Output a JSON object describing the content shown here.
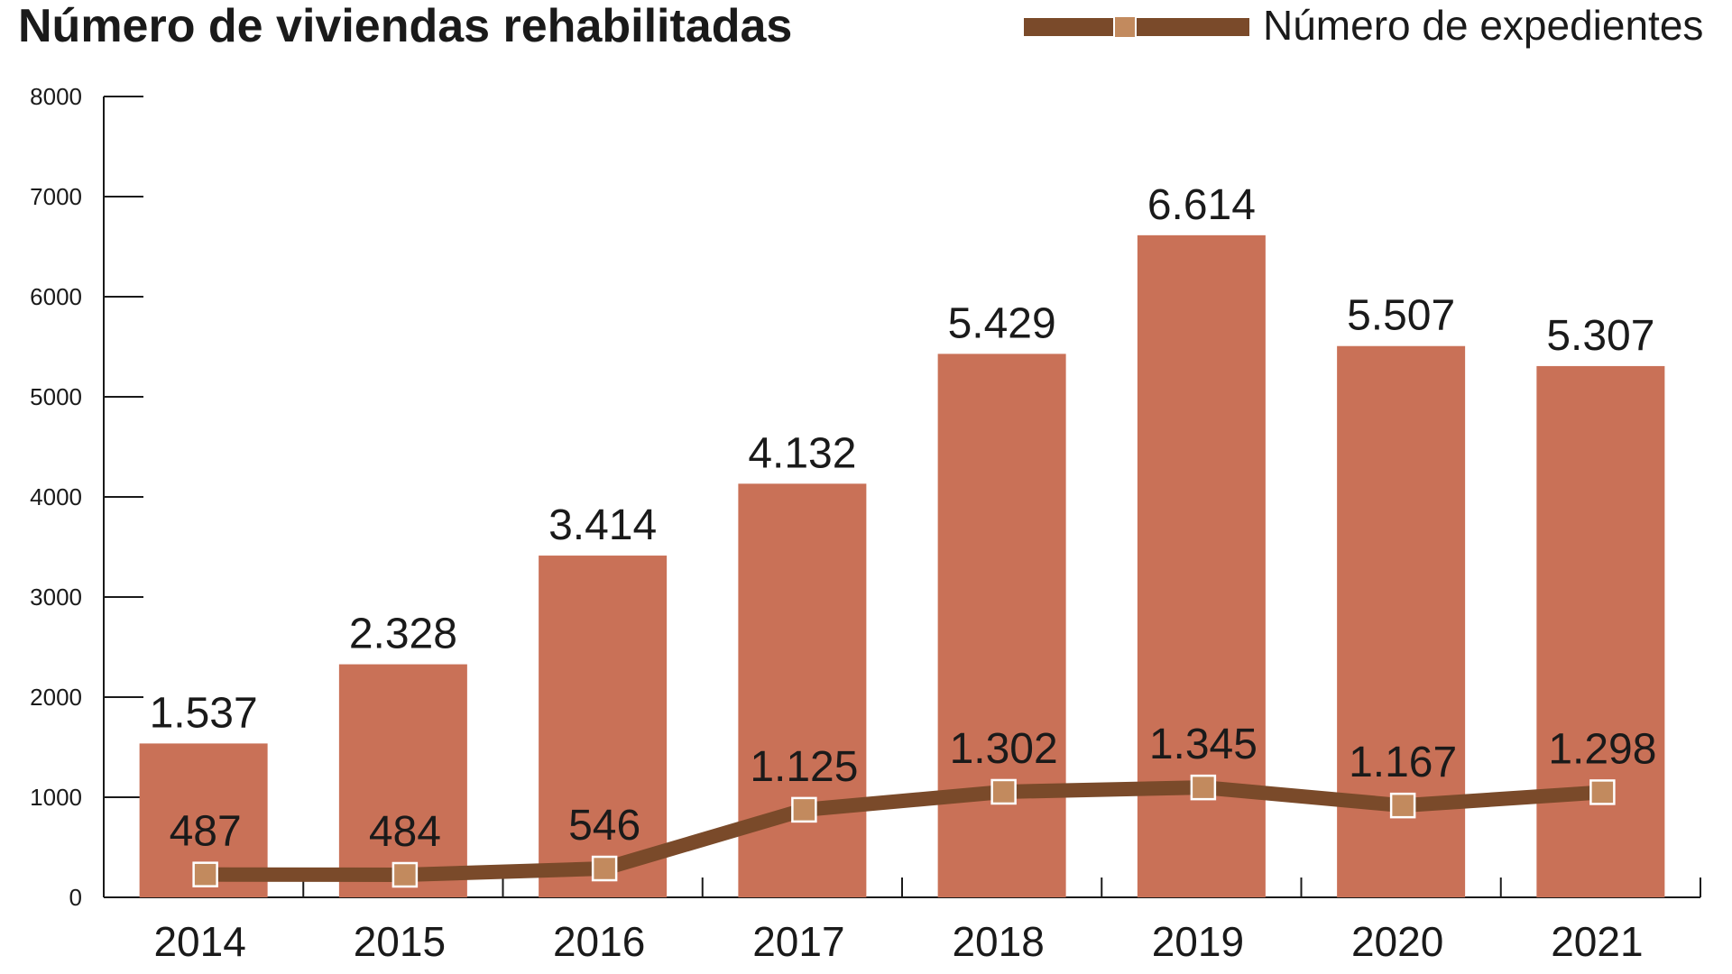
{
  "chart_data": {
    "type": "bar",
    "title": "Número de viviendas rehabilitadas",
    "categories": [
      "2014",
      "2015",
      "2016",
      "2017",
      "2018",
      "2019",
      "2020",
      "2021"
    ],
    "yticks": [
      "8000",
      "7000",
      "6000",
      "5000",
      "4000",
      "3000",
      "2000",
      "1000",
      "0"
    ],
    "ylim": [
      0,
      8000
    ],
    "grid": false,
    "legend_position": "top-right",
    "series": [
      {
        "type": "bar",
        "values": [
          1537,
          2328,
          3414,
          4132,
          5429,
          6614,
          5507,
          5307
        ],
        "labels": [
          "1.537",
          "2.328",
          "3.414",
          "4.132",
          "5.429",
          "6.614",
          "5.507",
          "5.307"
        ],
        "color": "#c97157"
      },
      {
        "type": "line",
        "name": "Número de expedientes",
        "values": [
          487,
          484,
          546,
          1125,
          1302,
          1345,
          1167,
          1298
        ],
        "labels": [
          "487",
          "484",
          "546",
          "1.125",
          "1.302",
          "1.345",
          "1.167",
          "1.298"
        ],
        "color": "#7a4a2a",
        "marker_color": "#c28a5e"
      }
    ]
  }
}
